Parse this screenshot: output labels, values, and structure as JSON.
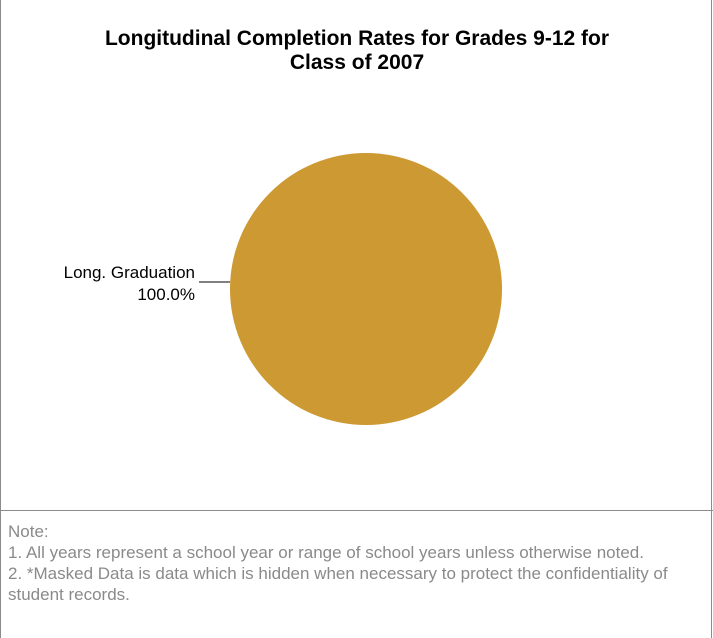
{
  "chart_data": {
    "type": "pie",
    "title_lines": [
      "Longitudinal Completion Rates for Grades 9-12 for",
      "Class of 2007"
    ],
    "slices": [
      {
        "label": "Long. Graduation",
        "value_label": "100.0%",
        "value": 100.0,
        "color": "#cc9933"
      }
    ],
    "legend": "none"
  },
  "notes": {
    "heading": "Note:",
    "items": [
      "1. All years represent a school year or range of school years unless otherwise noted.",
      "2. *Masked Data is data which is hidden when necessary to protect the confidentiality of student records."
    ]
  }
}
